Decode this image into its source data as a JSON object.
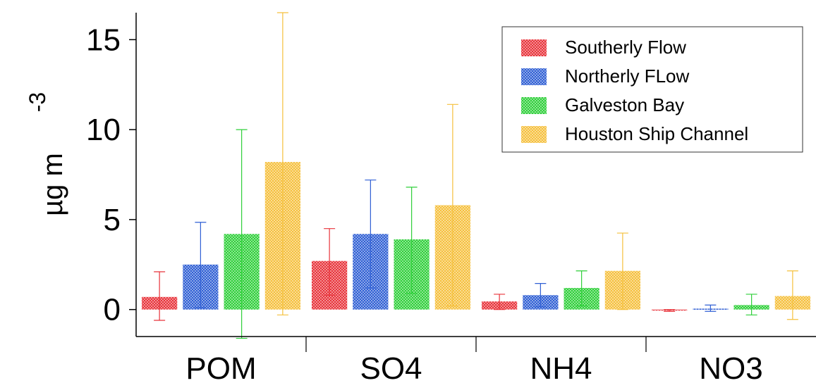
{
  "chart_data": {
    "type": "bar",
    "title": "",
    "xlabel": "",
    "ylabel": "µg m",
    "ylabel_superscript": "-3",
    "ylim": [
      -1.5,
      16.5
    ],
    "yticks": [
      "0",
      "5",
      "10",
      "15"
    ],
    "categories": [
      "POM",
      "SO4",
      "NH4",
      "NO3"
    ],
    "legend_position": "top-right",
    "series": [
      {
        "name": "Southerly Flow",
        "color": "#e8333a",
        "values": [
          0.7,
          2.7,
          0.45,
          -0.05
        ],
        "error_low": [
          -0.6,
          0.8,
          0.0,
          -0.1
        ],
        "error_high": [
          2.1,
          4.5,
          0.85,
          0.0
        ]
      },
      {
        "name": "Northerly FLow",
        "color": "#2f5fd4",
        "values": [
          2.5,
          4.2,
          0.8,
          0.05
        ],
        "error_low": [
          0.1,
          1.2,
          0.15,
          -0.1
        ],
        "error_high": [
          4.85,
          7.2,
          1.45,
          0.25
        ]
      },
      {
        "name": "Galveston Bay",
        "color": "#2fcf3a",
        "values": [
          4.2,
          3.9,
          1.2,
          0.25
        ],
        "error_low": [
          -1.6,
          0.9,
          0.2,
          -0.3
        ],
        "error_high": [
          10.0,
          6.8,
          2.15,
          0.85
        ]
      },
      {
        "name": "Houston Ship Channel",
        "color": "#f5c03d",
        "values": [
          8.2,
          5.8,
          2.15,
          0.75
        ],
        "error_low": [
          -0.3,
          0.2,
          0.0,
          -0.55
        ],
        "error_high": [
          16.5,
          11.4,
          4.25,
          2.15
        ]
      }
    ]
  }
}
